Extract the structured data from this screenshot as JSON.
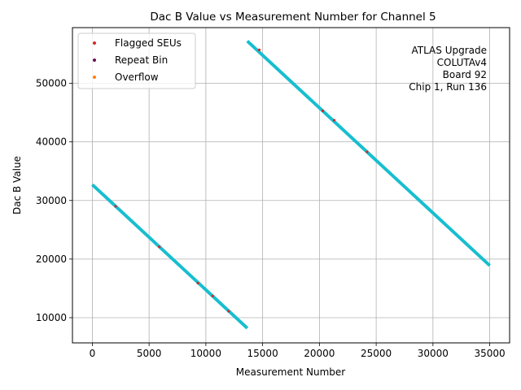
{
  "chart_data": {
    "type": "scatter",
    "title": "Dac B Value vs Measurement Number for Channel 5",
    "xlabel": "Measurement Number",
    "ylabel": "Dac B Value",
    "xlim": [
      -1750,
      36750
    ],
    "ylim": [
      5700,
      59500
    ],
    "xticks": [
      0,
      5000,
      10000,
      15000,
      20000,
      25000,
      30000,
      35000
    ],
    "yticks": [
      10000,
      20000,
      30000,
      40000,
      50000
    ],
    "grid": true,
    "legend_position": "top-left",
    "annotation": [
      "ATLAS Upgrade",
      "COLUTAv4",
      "Board 92",
      "Chip 1, Run 136"
    ],
    "data_color": "#17becf",
    "segments": [
      {
        "x": [
          0,
          13650
        ],
        "y": [
          32700,
          8200
        ]
      },
      {
        "x": [
          13650,
          35000
        ],
        "y": [
          57200,
          18900
        ]
      }
    ],
    "series": [
      {
        "name": "Flagged SEUs",
        "color": "#d62728",
        "x": [
          2050,
          5900,
          9300,
          10600,
          12000,
          14700,
          20300,
          21300,
          24200
        ],
        "y": [
          29000,
          22100,
          15900,
          13700,
          11100,
          55700,
          45300,
          43700,
          38300
        ]
      },
      {
        "name": "Repeat Bin",
        "color": "#6a0f4f",
        "x": [],
        "y": []
      },
      {
        "name": "Overflow",
        "color": "#ff7f0e",
        "x": [],
        "y": []
      }
    ]
  }
}
